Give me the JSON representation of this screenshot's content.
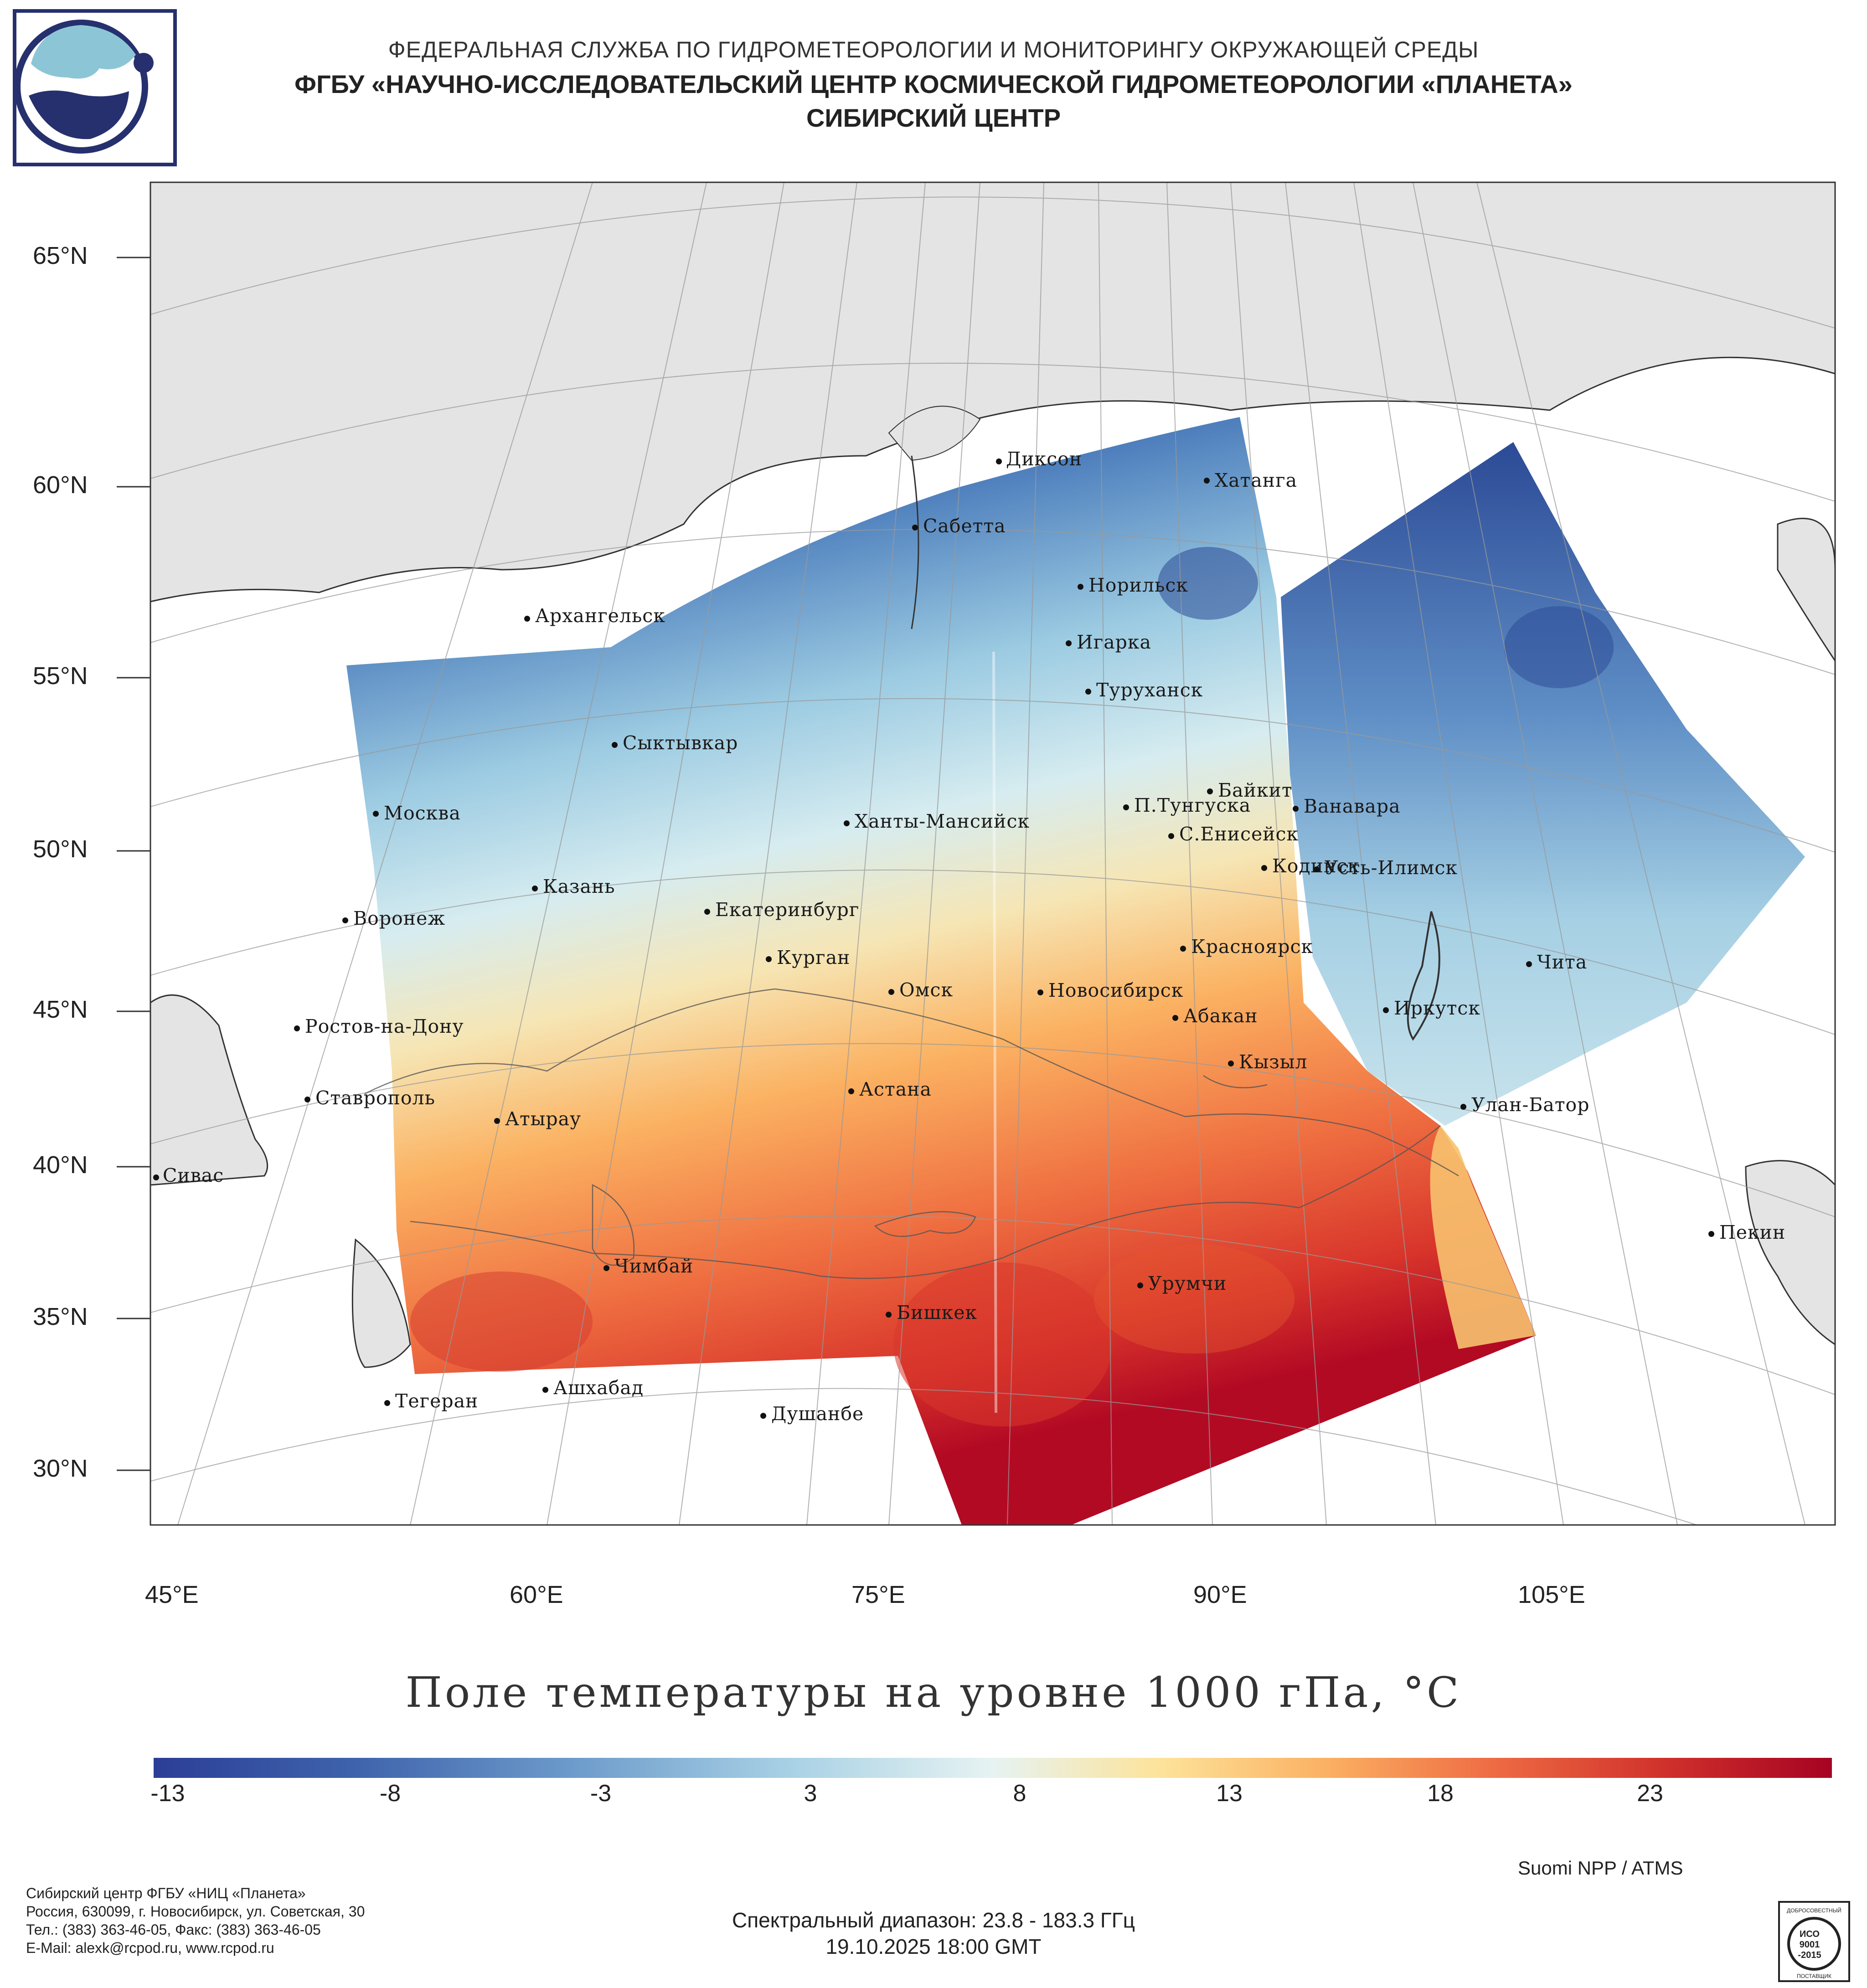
{
  "header": {
    "line1": "ФЕДЕРАЛЬНАЯ СЛУЖБА ПО ГИДРОМЕТЕОРОЛОГИИ И МОНИТОРИНГУ ОКРУЖАЮЩЕЙ СРЕДЫ",
    "line2": "ФГБУ «НАУЧНО-ИССЛЕДОВАТЕЛЬСКИЙ ЦЕНТР КОСМИЧЕСКОЙ ГИДРОМЕТЕОРОЛОГИИ «ПЛАНЕТА»",
    "line3": "СИБИРСКИЙ ЦЕНТР"
  },
  "map": {
    "title": "Поле температуры на уровне 1000 гПа, °C",
    "lat_labels": [
      "65°N",
      "60°N",
      "55°N",
      "50°N",
      "45°N",
      "40°N",
      "35°N",
      "30°N"
    ],
    "lon_labels": [
      "45°E",
      "60°E",
      "75°E",
      "90°E",
      "105°E"
    ],
    "cities": [
      "Диксон",
      "Хатанга",
      "Сабетта",
      "Норильск",
      "Архангельск",
      "Игарка",
      "Туруханск",
      "Сыктывкар",
      "Байкит",
      "Москва",
      "П.Тунгуска",
      "Ванавара",
      "Ханты-Мансийск",
      "С.Енисейск",
      "Кодинск",
      "Усть-Илимск",
      "Казань",
      "Екатеринбург",
      "Воронеж",
      "Красноярск",
      "Курган",
      "Чита",
      "Омск",
      "Новосибирск",
      "Ростов-на-Дону",
      "Абакан",
      "Иркутск",
      "Кызыл",
      "Ставрополь",
      "Астана",
      "Улан-Батор",
      "Атырау",
      "Сивас",
      "Пекин",
      "Чимбай",
      "Урумчи",
      "Бишкек",
      "Ашхабад",
      "Тегеран",
      "Душанбе"
    ]
  },
  "chart_data": {
    "type": "heatmap",
    "title": "Поле температуры на уровне 1000 гПа, °C",
    "variable": "temperature_1000hPa",
    "units": "°C",
    "colorbar": {
      "range": [
        -13,
        28
      ],
      "tick_labels": [
        "-13",
        "-8",
        "-3",
        "3",
        "8",
        "13",
        "18",
        "23"
      ],
      "tick_values": [
        -13,
        -8,
        -3,
        3,
        8,
        13,
        18,
        23
      ],
      "colors": [
        "#2b3e96",
        "#3f63ac",
        "#6d9bcb",
        "#a9d1e5",
        "#e6f3f2",
        "#fde39a",
        "#fbb062",
        "#ee6a43",
        "#d0312b",
        "#a60322"
      ]
    },
    "regions_approx_c": {
      "Taimyr_Evenkia": -12,
      "Yakutia_west": -11,
      "West_Siberia_north": -3,
      "Ural_Moscow": 2,
      "Kazakhstan_north": 5,
      "Caspian_Aral": 18,
      "Central_Asia_south": 23,
      "Tarim_Basin": 23
    }
  },
  "footer": {
    "satellite": "Suomi NPP / ATMS",
    "org_name": "Сибирский центр ФГБУ «НИЦ «Планета»",
    "address": "Россия, 630099, г. Новосибирск, ул. Советская, 30",
    "phone": "Тел.: (383) 363-46-05, Факс: (383) 363-46-05",
    "email": "E-Mail: alexk@rcpod.ru, www.rcpod.ru",
    "spectral": "Спектральный диапазон: 23.8 - 183.3 ГГц",
    "datetime": "19.10.2025 18:00 GMT",
    "badge_top": "ДОБРОСОВЕСТНЫЙ",
    "badge_iso": "ИСО",
    "badge_num": "9001",
    "badge_year": "-2015",
    "badge_bottom": "ПОСТАВЩИК"
  }
}
